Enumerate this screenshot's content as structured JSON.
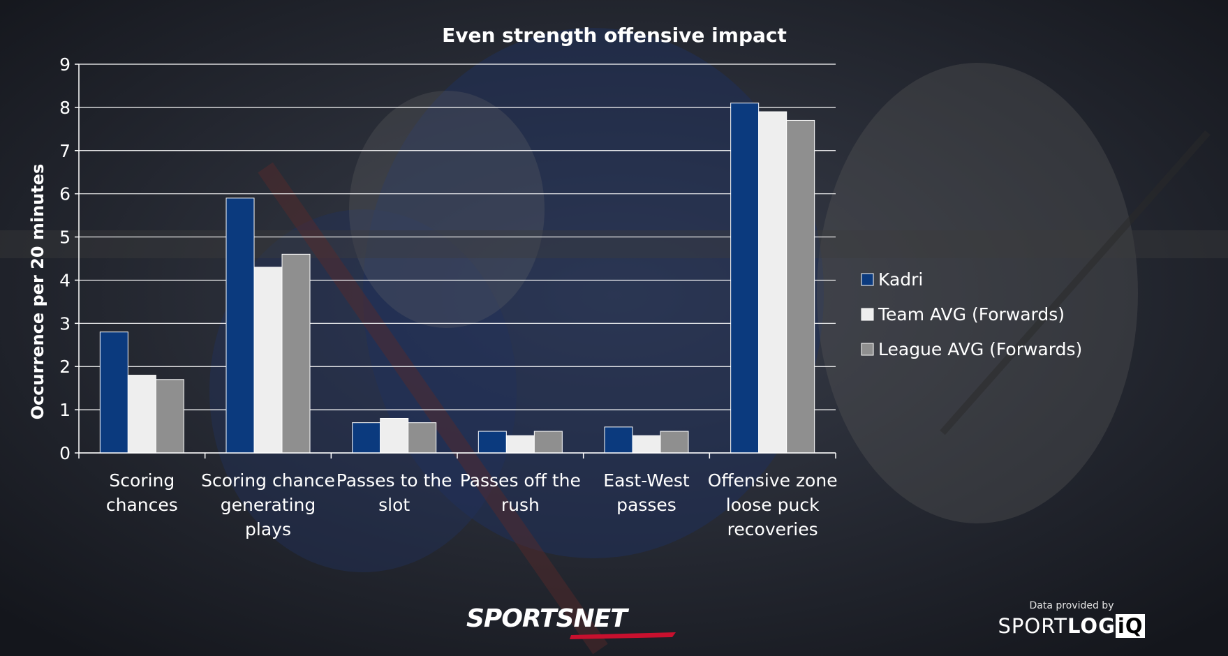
{
  "branding": {
    "sportsnet": "SPORTSNET",
    "provided_by": "Data provided by",
    "sportlogiq_a": "SPORT",
    "sportlogiq_b": "LOG",
    "sportlogiq_c": "iQ"
  },
  "chart_data": {
    "type": "bar",
    "title": "Even strength offensive impact",
    "ylabel": "Occurrence per 20 minutes",
    "xlabel": "",
    "ylim": [
      0,
      9
    ],
    "yticks": [
      0,
      1,
      2,
      3,
      4,
      5,
      6,
      7,
      8,
      9
    ],
    "grid": true,
    "legend_position": "right",
    "categories": [
      [
        "Scoring",
        "chances"
      ],
      [
        "Scoring chance",
        "generating",
        "plays"
      ],
      [
        "Passes to the",
        "slot"
      ],
      [
        "Passes off the",
        "rush"
      ],
      [
        "East-West",
        "passes"
      ],
      [
        "Offensive zone",
        "loose puck",
        "recoveries"
      ]
    ],
    "series": [
      {
        "name": "Kadri",
        "color": "#0b3a7e",
        "values": [
          2.8,
          5.9,
          0.7,
          0.5,
          0.6,
          8.1
        ]
      },
      {
        "name": "Team AVG (Forwards)",
        "color": "#eeeeee",
        "values": [
          1.8,
          4.3,
          0.8,
          0.4,
          0.4,
          7.9
        ]
      },
      {
        "name": "League AVG (Forwards)",
        "color": "#8f8f8f",
        "values": [
          1.7,
          4.6,
          0.7,
          0.5,
          0.5,
          7.7
        ]
      }
    ]
  }
}
